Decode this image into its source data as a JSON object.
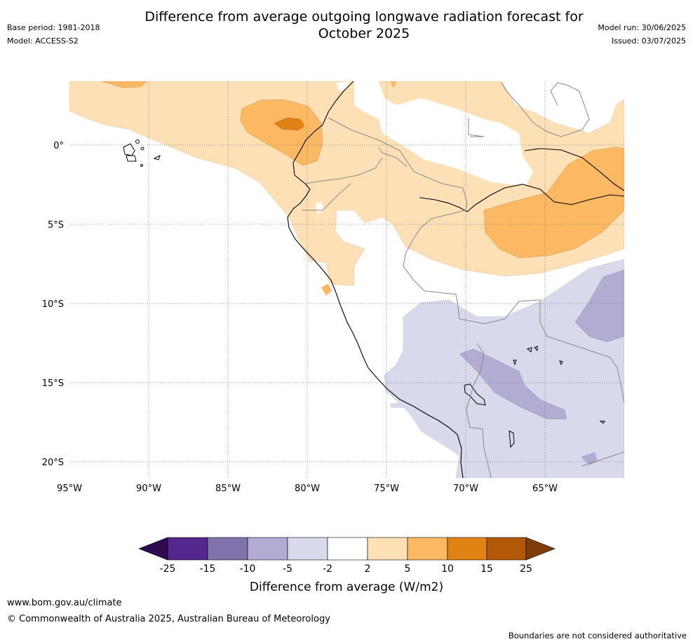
{
  "header": {
    "title_line1": "Difference from average outgoing longwave radiation forecast for",
    "title_line2": "October 2025",
    "base_period": "Base period: 1981-2018",
    "model": "Model: ACCESS-S2",
    "model_run": "Model run: 30/06/2025",
    "issued": "Issued: 03/07/2025"
  },
  "map": {
    "lon_ticks": [
      "95°W",
      "90°W",
      "85°W",
      "80°W",
      "75°W",
      "70°W",
      "65°W"
    ],
    "lat_ticks": [
      "0°",
      "5°S",
      "10°S",
      "15°S",
      "20°S"
    ],
    "gridlines": "dotted"
  },
  "legend": {
    "ticks": [
      "-25",
      "-15",
      "-10",
      "-5",
      "-2",
      "2",
      "5",
      "10",
      "15",
      "25"
    ],
    "label": "Difference from average (W/m2)",
    "colors": [
      "#2d0b4e",
      "#54278f",
      "#8073ac",
      "#b2abd2",
      "#d8daeb",
      "#ffffff",
      "#fee0b6",
      "#fdb863",
      "#e08214",
      "#b35806",
      "#7f3b08"
    ]
  },
  "footer": {
    "url": "www.bom.gov.au/climate",
    "copyright": "© Commonwealth of Australia 2025, Australian Bureau of Meteorology",
    "disclaimer": "Boundaries are not considered authoritative"
  }
}
